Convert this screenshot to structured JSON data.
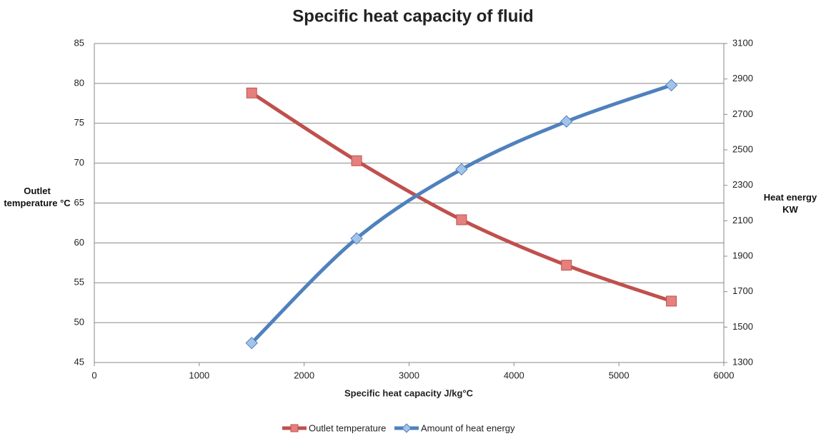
{
  "chart_data": {
    "type": "line",
    "title": "Specific heat capacity of fluid",
    "x_label": "Specific heat capacity J/kg°C",
    "y_label": "Outlet temperature °C",
    "y2_label": "Heat energy KW",
    "x": [
      1500,
      2500,
      3500,
      4500,
      5500
    ],
    "series": [
      {
        "name": "Outlet temperature",
        "color": "#c0504d",
        "marker": "square",
        "values": [
          78.8,
          70.3,
          62.9,
          57.2,
          52.7
        ]
      },
      {
        "name": "Amount of heat energy",
        "color": "#4f81bd",
        "marker": "diamond",
        "axis": "y2",
        "values": [
          1410,
          2000,
          2390,
          2660,
          2865
        ]
      }
    ],
    "xlim": [
      0,
      6000
    ],
    "xticks": [
      0,
      1000,
      2000,
      3000,
      4000,
      5000,
      6000
    ],
    "ylim": [
      45,
      85
    ],
    "yticks": [
      45,
      50,
      55,
      60,
      65,
      70,
      75,
      80,
      85
    ],
    "y2lim": [
      1300,
      3100
    ],
    "y2ticks": [
      1300,
      1500,
      1700,
      1900,
      2100,
      2300,
      2500,
      2700,
      2900,
      3100
    ],
    "grid": true,
    "smooth": true,
    "legend": "bottom"
  }
}
